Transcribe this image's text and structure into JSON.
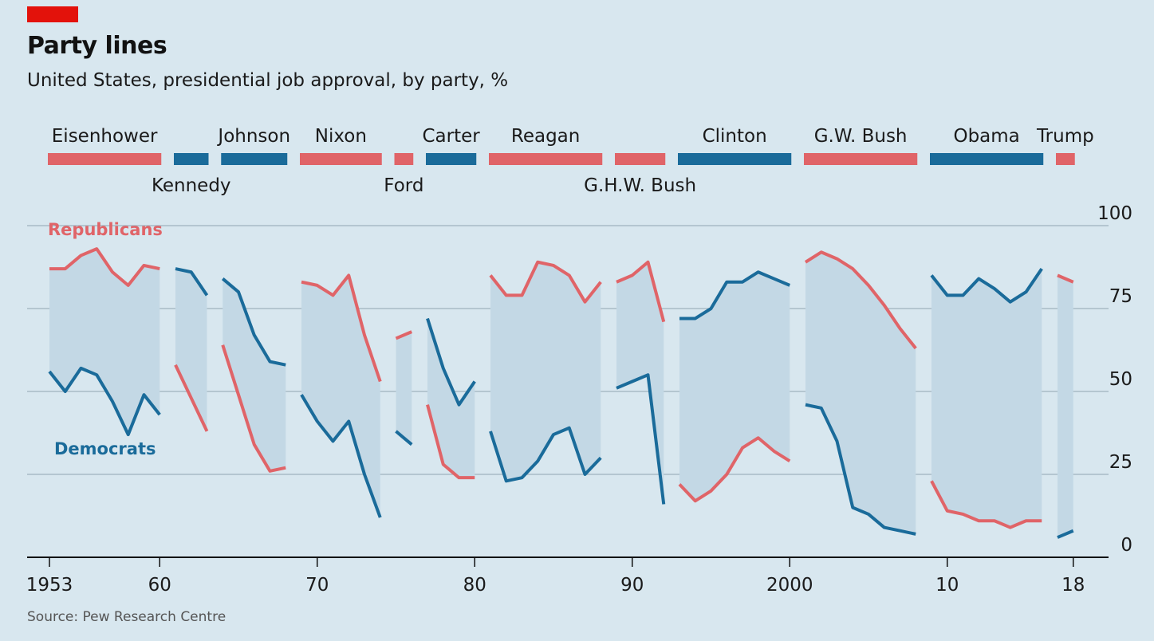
{
  "title": "Party lines",
  "subtitle": "United States, presidential job approval, by party, %",
  "source": "Source: Pew Research Centre",
  "colors": {
    "republican": "#e06468",
    "democrat": "#1a6b9a",
    "band": "#c3d8e5",
    "background": "#d8e7ef",
    "accent": "#e3120b"
  },
  "chart_data": {
    "type": "line",
    "title": "Party lines",
    "subtitle": "United States, presidential job approval, by party, %",
    "ylim": [
      0,
      100
    ],
    "yticks": [
      0,
      25,
      50,
      75,
      100
    ],
    "xlim": [
      1952,
      2020
    ],
    "xticks": [
      {
        "value": 1953,
        "label": "1953"
      },
      {
        "value": 1960,
        "label": "60"
      },
      {
        "value": 1970,
        "label": "70"
      },
      {
        "value": 1980,
        "label": "80"
      },
      {
        "value": 1990,
        "label": "90"
      },
      {
        "value": 2000,
        "label": "2000"
      },
      {
        "value": 2010,
        "label": "10"
      },
      {
        "value": 2018,
        "label": "18"
      }
    ],
    "legend": [
      {
        "name": "Republicans",
        "color": "#e06468"
      },
      {
        "name": "Democrats",
        "color": "#1a6b9a"
      }
    ],
    "presidents": [
      {
        "name": "Eisenhower",
        "party": "R",
        "start": 1953,
        "end": 1960,
        "label_row": "top",
        "rep": [
          [
            1953,
            87
          ],
          [
            1954,
            87
          ],
          [
            1955,
            91
          ],
          [
            1956,
            93
          ],
          [
            1957,
            86
          ],
          [
            1958,
            82
          ],
          [
            1959,
            88
          ],
          [
            1960,
            87
          ]
        ],
        "dem": [
          [
            1953,
            56
          ],
          [
            1954,
            50
          ],
          [
            1955,
            57
          ],
          [
            1956,
            55
          ],
          [
            1957,
            47
          ],
          [
            1958,
            37
          ],
          [
            1959,
            49
          ],
          [
            1960,
            43
          ]
        ]
      },
      {
        "name": "Kennedy",
        "party": "D",
        "start": 1961,
        "end": 1963,
        "label_row": "bottom",
        "rep": [
          [
            1961,
            58
          ],
          [
            1962,
            48
          ],
          [
            1963,
            38
          ]
        ],
        "dem": [
          [
            1961,
            87
          ],
          [
            1962,
            86
          ],
          [
            1963,
            79
          ]
        ]
      },
      {
        "name": "Johnson",
        "party": "D",
        "start": 1964,
        "end": 1968,
        "label_row": "top",
        "rep": [
          [
            1964,
            64
          ],
          [
            1965,
            49
          ],
          [
            1966,
            34
          ],
          [
            1967,
            26
          ],
          [
            1968,
            27
          ]
        ],
        "dem": [
          [
            1964,
            84
          ],
          [
            1965,
            80
          ],
          [
            1966,
            67
          ],
          [
            1967,
            59
          ],
          [
            1968,
            58
          ]
        ]
      },
      {
        "name": "Nixon",
        "party": "R",
        "start": 1969,
        "end": 1974,
        "label_row": "top",
        "rep": [
          [
            1969,
            83
          ],
          [
            1970,
            82
          ],
          [
            1971,
            79
          ],
          [
            1972,
            85
          ],
          [
            1973,
            67
          ],
          [
            1974,
            53
          ]
        ],
        "dem": [
          [
            1969,
            49
          ],
          [
            1970,
            41
          ],
          [
            1971,
            35
          ],
          [
            1972,
            41
          ],
          [
            1973,
            25
          ],
          [
            1974,
            12
          ]
        ]
      },
      {
        "name": "Ford",
        "party": "R",
        "start": 1975,
        "end": 1976,
        "label_row": "bottom",
        "rep": [
          [
            1975,
            66
          ],
          [
            1976,
            68
          ]
        ],
        "dem": [
          [
            1975,
            38
          ],
          [
            1976,
            34
          ]
        ]
      },
      {
        "name": "Carter",
        "party": "D",
        "start": 1977,
        "end": 1980,
        "label_row": "top",
        "rep": [
          [
            1977,
            46
          ],
          [
            1978,
            28
          ],
          [
            1979,
            24
          ],
          [
            1980,
            24
          ]
        ],
        "dem": [
          [
            1977,
            72
          ],
          [
            1978,
            57
          ],
          [
            1979,
            46
          ],
          [
            1980,
            53
          ]
        ]
      },
      {
        "name": "Reagan",
        "party": "R",
        "start": 1981,
        "end": 1988,
        "label_row": "top",
        "rep": [
          [
            1981,
            85
          ],
          [
            1982,
            79
          ],
          [
            1983,
            79
          ],
          [
            1984,
            89
          ],
          [
            1985,
            88
          ],
          [
            1986,
            85
          ],
          [
            1987,
            77
          ],
          [
            1988,
            83
          ]
        ],
        "dem": [
          [
            1981,
            38
          ],
          [
            1982,
            23
          ],
          [
            1983,
            24
          ],
          [
            1984,
            29
          ],
          [
            1985,
            37
          ],
          [
            1986,
            39
          ],
          [
            1987,
            25
          ],
          [
            1988,
            30
          ]
        ]
      },
      {
        "name": "G.H.W. Bush",
        "party": "R",
        "start": 1989,
        "end": 1992,
        "label_row": "bottom",
        "rep": [
          [
            1989,
            83
          ],
          [
            1990,
            85
          ],
          [
            1991,
            89
          ],
          [
            1992,
            71
          ]
        ],
        "dem": [
          [
            1989,
            51
          ],
          [
            1990,
            53
          ],
          [
            1991,
            55
          ],
          [
            1992,
            16
          ]
        ]
      },
      {
        "name": "Clinton",
        "party": "D",
        "start": 1993,
        "end": 2000,
        "label_row": "top",
        "rep": [
          [
            1993,
            22
          ],
          [
            1994,
            17
          ],
          [
            1995,
            20
          ],
          [
            1996,
            25
          ],
          [
            1997,
            33
          ],
          [
            1998,
            36
          ],
          [
            1999,
            32
          ],
          [
            2000,
            29
          ]
        ],
        "dem": [
          [
            1993,
            72
          ],
          [
            1994,
            72
          ],
          [
            1995,
            75
          ],
          [
            1996,
            83
          ],
          [
            1997,
            83
          ],
          [
            1998,
            86
          ],
          [
            1999,
            84
          ],
          [
            2000,
            82
          ]
        ]
      },
      {
        "name": "G.W. Bush",
        "party": "R",
        "start": 2001,
        "end": 2008,
        "label_row": "top",
        "rep": [
          [
            2001,
            89
          ],
          [
            2002,
            92
          ],
          [
            2003,
            90
          ],
          [
            2004,
            87
          ],
          [
            2005,
            82
          ],
          [
            2006,
            76
          ],
          [
            2007,
            69
          ],
          [
            2008,
            63
          ]
        ],
        "dem": [
          [
            2001,
            46
          ],
          [
            2002,
            45
          ],
          [
            2003,
            35
          ],
          [
            2004,
            15
          ],
          [
            2005,
            13
          ],
          [
            2006,
            9
          ],
          [
            2007,
            8
          ],
          [
            2008,
            7
          ]
        ]
      },
      {
        "name": "Obama",
        "party": "D",
        "start": 2009,
        "end": 2016,
        "label_row": "top",
        "rep": [
          [
            2009,
            23
          ],
          [
            2010,
            14
          ],
          [
            2011,
            13
          ],
          [
            2012,
            11
          ],
          [
            2013,
            11
          ],
          [
            2014,
            9
          ],
          [
            2015,
            11
          ],
          [
            2016,
            11
          ]
        ],
        "dem": [
          [
            2009,
            85
          ],
          [
            2010,
            79
          ],
          [
            2011,
            79
          ],
          [
            2012,
            84
          ],
          [
            2013,
            81
          ],
          [
            2014,
            77
          ],
          [
            2015,
            80
          ],
          [
            2016,
            87
          ]
        ]
      },
      {
        "name": "Trump",
        "party": "R",
        "start": 2017,
        "end": 2018,
        "label_row": "top",
        "rep": [
          [
            2017,
            85
          ],
          [
            2018,
            83
          ]
        ],
        "dem": [
          [
            2017,
            6
          ],
          [
            2018,
            8
          ]
        ]
      }
    ]
  }
}
